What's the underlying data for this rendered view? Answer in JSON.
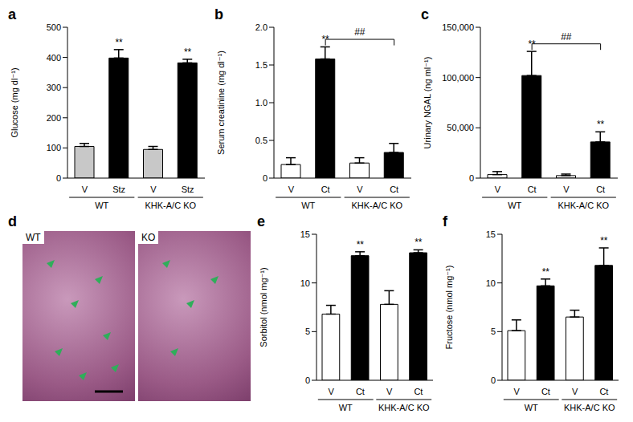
{
  "chart_data": [
    {
      "type": "bar",
      "panel": "a",
      "y_label": "Glucose (mg dl⁻¹)",
      "categories": [
        "V",
        "Stz",
        "V",
        "Stz"
      ],
      "group_labels": [
        "WT",
        "KHK-A/C KO"
      ],
      "values": [
        105,
        398,
        95,
        382
      ],
      "errors": [
        10,
        28,
        10,
        12
      ],
      "colors": [
        "#c8c8c8",
        "#000000",
        "#c8c8c8",
        "#000000"
      ],
      "ylim": [
        0,
        500
      ],
      "yticks": [
        0,
        100,
        200,
        300,
        400,
        500
      ],
      "annotations": [
        {
          "index": 1,
          "text": "**"
        },
        {
          "index": 3,
          "text": "**"
        }
      ]
    },
    {
      "type": "bar",
      "panel": "b",
      "y_label": "Serum creatinine (mg dl⁻¹)",
      "categories": [
        "V",
        "Ct",
        "V",
        "Ct"
      ],
      "group_labels": [
        "WT",
        "KHK-A/C KO"
      ],
      "values": [
        0.18,
        1.58,
        0.2,
        0.34
      ],
      "errors": [
        0.09,
        0.16,
        0.07,
        0.12
      ],
      "colors": [
        "#ffffff",
        "#000000",
        "#ffffff",
        "#000000"
      ],
      "ylim": [
        0,
        2.0
      ],
      "yticks": [
        0,
        0.5,
        {
          "value": 1.0,
          "label": "1.0"
        },
        1.5,
        {
          "value": 2.0,
          "label": "2.0"
        }
      ],
      "annotations": [
        {
          "index": 1,
          "text": "**"
        }
      ],
      "brackets": [
        {
          "from": 1,
          "to": 3,
          "text": "##"
        }
      ]
    },
    {
      "type": "bar",
      "panel": "c",
      "y_label": "Urinary NGAL (ng ml⁻¹)",
      "categories": [
        "V",
        "Ct",
        "V",
        "Ct"
      ],
      "group_labels": [
        "WT",
        "KHK-A/C KO"
      ],
      "values": [
        3500,
        102000,
        2500,
        36000
      ],
      "errors": [
        3000,
        24000,
        1500,
        10000
      ],
      "colors": [
        "#ffffff",
        "#000000",
        "#ffffff",
        "#000000"
      ],
      "ylim": [
        0,
        150000
      ],
      "yticks": [
        0,
        {
          "value": 50000,
          "label": "50,000"
        },
        {
          "value": 100000,
          "label": "100,000"
        },
        {
          "value": 150000,
          "label": "150,000"
        }
      ],
      "annotations": [
        {
          "index": 1,
          "text": "**"
        },
        {
          "index": 3,
          "text": "**"
        }
      ],
      "brackets": [
        {
          "from": 1,
          "to": 3,
          "text": "##"
        }
      ]
    },
    {
      "type": "image",
      "panel": "d",
      "labels": [
        "WT",
        "KO"
      ]
    },
    {
      "type": "bar",
      "panel": "e",
      "y_label": "Sorbitol (nmol mg⁻¹)",
      "categories": [
        "V",
        "Ct",
        "V",
        "Ct"
      ],
      "group_labels": [
        "WT",
        "KHK-A/C KO"
      ],
      "values": [
        6.8,
        12.8,
        7.8,
        13.1
      ],
      "errors": [
        0.9,
        0.4,
        1.4,
        0.3
      ],
      "colors": [
        "#ffffff",
        "#000000",
        "#ffffff",
        "#000000"
      ],
      "ylim": [
        0,
        15
      ],
      "yticks": [
        0,
        5,
        10,
        15
      ],
      "annotations": [
        {
          "index": 1,
          "text": "**"
        },
        {
          "index": 3,
          "text": "**"
        }
      ]
    },
    {
      "type": "bar",
      "panel": "f",
      "y_label": "Fructose (nmol mg⁻¹)",
      "categories": [
        "V",
        "Ct",
        "V",
        "Ct"
      ],
      "group_labels": [
        "WT",
        "KHK-A/C KO"
      ],
      "values": [
        5.1,
        9.7,
        6.5,
        11.8
      ],
      "errors": [
        1.1,
        0.7,
        0.7,
        1.8
      ],
      "colors": [
        "#ffffff",
        "#000000",
        "#ffffff",
        "#000000"
      ],
      "ylim": [
        0,
        15
      ],
      "yticks": [
        0,
        5,
        10,
        15
      ],
      "annotations": [
        {
          "index": 1,
          "text": "**"
        },
        {
          "index": 3,
          "text": "**"
        }
      ]
    }
  ]
}
